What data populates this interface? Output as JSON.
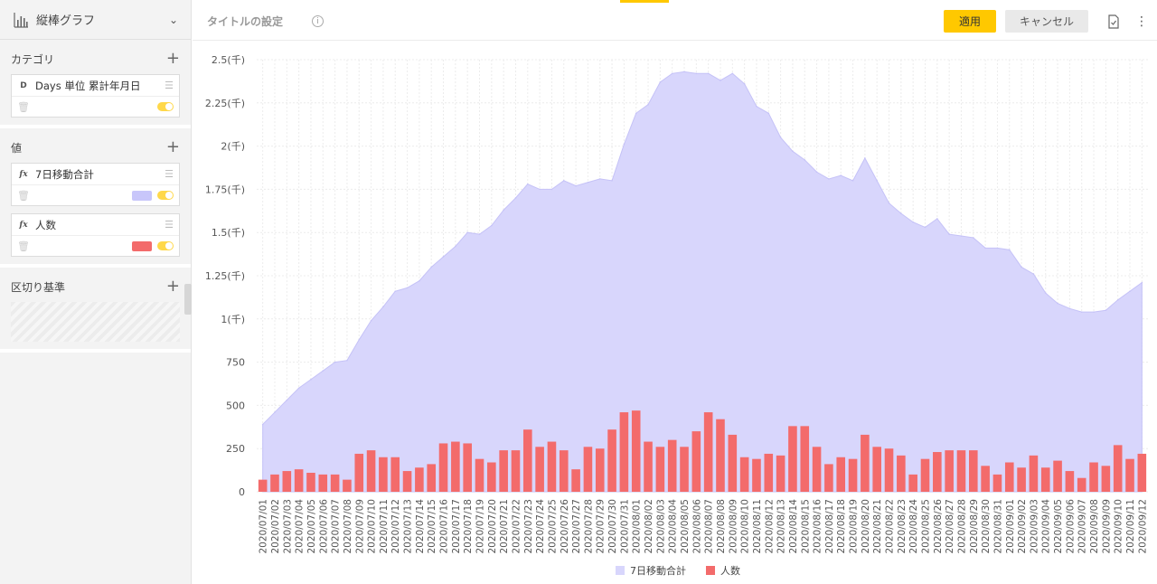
{
  "sidebar": {
    "chart_type": "縦棒グラフ",
    "category": {
      "label": "カテゴリ",
      "field_type": "D",
      "field_name": "Days 単位 累計年月日"
    },
    "values": {
      "label": "値",
      "fields": [
        {
          "type": "fx",
          "name": "7日移動合計",
          "color": "#c8c6fa"
        },
        {
          "type": "fx",
          "name": "人数",
          "color": "#f36b6b"
        }
      ]
    },
    "breakdown": {
      "label": "区切り基準"
    }
  },
  "header": {
    "title_setting": "タイトルの設定",
    "apply_label": "適用",
    "cancel_label": "キャンセル"
  },
  "colors": {
    "accent": "#ffc800",
    "area": "#d8d6fc",
    "area_line": "#c5c2f7",
    "bar": "#f36b6b"
  },
  "chart_data": {
    "type": "bar",
    "ylim": [
      0,
      2500
    ],
    "yticks": [
      0,
      250,
      500,
      750,
      1000,
      1250,
      1500,
      1750,
      2000,
      2250,
      2500
    ],
    "ytick_labels": [
      "0",
      "250",
      "500",
      "750",
      "1(千)",
      "1.25(千)",
      "1.5(千)",
      "1.75(千)",
      "2(千)",
      "2.25(千)",
      "2.5(千)"
    ],
    "categories": [
      "2020/07/01",
      "2020/07/02",
      "2020/07/03",
      "2020/07/04",
      "2020/07/05",
      "2020/07/06",
      "2020/07/07",
      "2020/07/08",
      "2020/07/09",
      "2020/07/10",
      "2020/07/11",
      "2020/07/12",
      "2020/07/13",
      "2020/07/14",
      "2020/07/15",
      "2020/07/16",
      "2020/07/17",
      "2020/07/18",
      "2020/07/19",
      "2020/07/20",
      "2020/07/21",
      "2020/07/22",
      "2020/07/23",
      "2020/07/24",
      "2020/07/25",
      "2020/07/26",
      "2020/07/27",
      "2020/07/28",
      "2020/07/29",
      "2020/07/30",
      "2020/07/31",
      "2020/08/01",
      "2020/08/02",
      "2020/08/03",
      "2020/08/04",
      "2020/08/05",
      "2020/08/06",
      "2020/08/07",
      "2020/08/08",
      "2020/08/09",
      "2020/08/10",
      "2020/08/11",
      "2020/08/12",
      "2020/08/13",
      "2020/08/14",
      "2020/08/15",
      "2020/08/16",
      "2020/08/17",
      "2020/08/18",
      "2020/08/19",
      "2020/08/20",
      "2020/08/21",
      "2020/08/22",
      "2020/08/23",
      "2020/08/24",
      "2020/08/25",
      "2020/08/26",
      "2020/08/27",
      "2020/08/28",
      "2020/08/29",
      "2020/08/30",
      "2020/08/31",
      "2020/09/01",
      "2020/09/02",
      "2020/09/03",
      "2020/09/04",
      "2020/09/05",
      "2020/09/06",
      "2020/09/07",
      "2020/09/08",
      "2020/09/09",
      "2020/09/10",
      "2020/09/11",
      "2020/09/12"
    ],
    "series": [
      {
        "name": "7日移動合計",
        "kind": "area",
        "values": [
          390,
          460,
          530,
          600,
          650,
          700,
          750,
          760,
          880,
          990,
          1070,
          1160,
          1180,
          1220,
          1300,
          1360,
          1420,
          1500,
          1490,
          1540,
          1630,
          1700,
          1780,
          1750,
          1750,
          1800,
          1770,
          1790,
          1810,
          1800,
          2010,
          2190,
          2240,
          2370,
          2420,
          2430,
          2420,
          2420,
          2380,
          2420,
          2360,
          2230,
          2190,
          2050,
          1970,
          1920,
          1850,
          1810,
          1830,
          1800,
          1930,
          1800,
          1670,
          1610,
          1560,
          1530,
          1580,
          1490,
          1480,
          1470,
          1410,
          1410,
          1400,
          1300,
          1260,
          1150,
          1090,
          1060,
          1040,
          1040,
          1050,
          1110,
          1160,
          1210
        ]
      },
      {
        "name": "人数",
        "kind": "bar",
        "values": [
          70,
          100,
          120,
          130,
          110,
          100,
          100,
          70,
          220,
          240,
          200,
          200,
          120,
          140,
          160,
          280,
          290,
          280,
          190,
          170,
          240,
          240,
          360,
          260,
          290,
          240,
          130,
          260,
          250,
          360,
          460,
          470,
          290,
          260,
          300,
          260,
          350,
          460,
          420,
          330,
          200,
          190,
          220,
          210,
          380,
          380,
          260,
          160,
          200,
          190,
          330,
          260,
          250,
          210,
          100,
          190,
          230,
          240,
          240,
          240,
          150,
          100,
          170,
          140,
          210,
          140,
          180,
          120,
          80,
          170,
          150,
          270,
          190,
          220
        ]
      }
    ],
    "legend_position": "bottom",
    "grid": true
  }
}
